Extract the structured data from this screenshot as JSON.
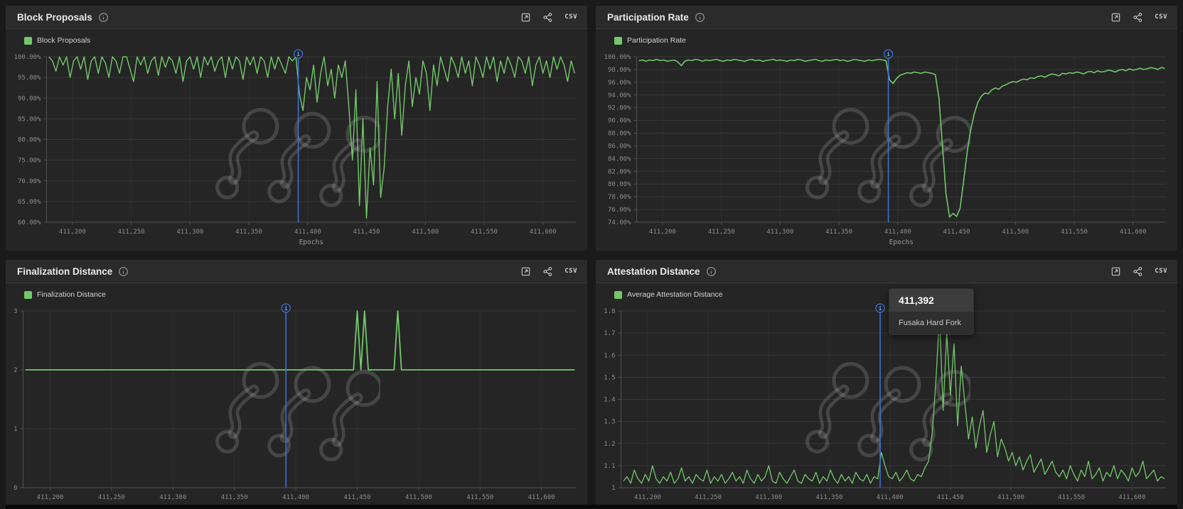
{
  "colors": {
    "series": "#73c96a",
    "annotation": "#3e6fd0",
    "grid_h": "rgba(255,255,255,0.08)",
    "grid_v": "rgba(255,255,255,0.045)",
    "axis": "#515151",
    "tick_text": "#8d8d8d",
    "panel_bg": "#252525",
    "header_bg": "#2b2b2b",
    "page_bg": "#1a1a1a"
  },
  "panels": [
    {
      "title": "Block Proposals",
      "legend": "Block Proposals",
      "csv_label": "CSV"
    },
    {
      "title": "Participation Rate",
      "legend": "Participation Rate",
      "csv_label": "CSV"
    },
    {
      "title": "Finalization Distance",
      "legend": "Finalization Distance",
      "csv_label": "CSV"
    },
    {
      "title": "Attestation Distance",
      "legend": "Average Attestation Distance",
      "csv_label": "CSV"
    }
  ],
  "chart_data": [
    {
      "type": "line",
      "name": "Block Proposals",
      "xlabel": "Epochs",
      "ylim": [
        60,
        100
      ],
      "xlim": [
        411178,
        411628
      ],
      "yticks": [
        100,
        95,
        90,
        85,
        80,
        75,
        70,
        65,
        60
      ],
      "ytick_labels": [
        "100.00%",
        "95.00%",
        "90.00%",
        "85.00%",
        "80.00%",
        "75.00%",
        "70.00%",
        "65.00%",
        "60.00%"
      ],
      "xticks": [
        411200,
        411250,
        411300,
        411350,
        411400,
        411450,
        411500,
        411550,
        411600
      ],
      "xtick_labels": [
        "411,200",
        "411,250",
        "411,300",
        "411,350",
        "411,400",
        "411,450",
        "411,500",
        "411,550",
        "411,600"
      ],
      "x_start": 411180,
      "x_step": 3,
      "stroke_width": 1.4,
      "annotation": {
        "x": 411392
      },
      "values": [
        100,
        99,
        96.5,
        100,
        98,
        100,
        95,
        99,
        100,
        97,
        100,
        94.5,
        99,
        100,
        96,
        100,
        98.5,
        95,
        100,
        99,
        96,
        100,
        100,
        97,
        94,
        100,
        98,
        100,
        96,
        99,
        100,
        95.5,
        100,
        97.5,
        100,
        99,
        96,
        100,
        94,
        99,
        100,
        97,
        100,
        95,
        100,
        98,
        100,
        96.5,
        99,
        100,
        95,
        100,
        97,
        100,
        99,
        94.5,
        100,
        98,
        100,
        96,
        100,
        99,
        95,
        100,
        97,
        100,
        98,
        96,
        100,
        99,
        100,
        91,
        87,
        95,
        92,
        98,
        89,
        96,
        100,
        93,
        97,
        90,
        98,
        95,
        99,
        88,
        75,
        92,
        64,
        85,
        61,
        78,
        69,
        94,
        66,
        73,
        88,
        97,
        85,
        96,
        81,
        93,
        99,
        88,
        95,
        91,
        99,
        96,
        87,
        98,
        93,
        100,
        97,
        94,
        100,
        98,
        95,
        100,
        96,
        99,
        93,
        100,
        98,
        95,
        100,
        97,
        100,
        94,
        99,
        96,
        100,
        98,
        95,
        100,
        99,
        96,
        100,
        93,
        98,
        100,
        96,
        99,
        95,
        100,
        97,
        100,
        98,
        94,
        99,
        96
      ]
    },
    {
      "type": "line",
      "name": "Participation Rate",
      "xlabel": "Epochs",
      "ylim": [
        74,
        100
      ],
      "xlim": [
        411178,
        411628
      ],
      "yticks": [
        100,
        98,
        96,
        94,
        92,
        90,
        88,
        86,
        84,
        82,
        80,
        78,
        76,
        74
      ],
      "ytick_labels": [
        "100.00%",
        "98.00%",
        "96.00%",
        "94.00%",
        "92.00%",
        "90.00%",
        "88.00%",
        "86.00%",
        "84.00%",
        "82.00%",
        "80.00%",
        "78.00%",
        "76.00%",
        "74.00%"
      ],
      "xticks": [
        411200,
        411250,
        411300,
        411350,
        411400,
        411450,
        411500,
        411550,
        411600
      ],
      "xtick_labels": [
        "411,200",
        "411,250",
        "411,300",
        "411,350",
        "411,400",
        "411,450",
        "411,500",
        "411,550",
        "411,600"
      ],
      "x_start": 411180,
      "x_step": 3,
      "stroke_width": 1.6,
      "annotation": {
        "x": 411392
      },
      "values": [
        99.4,
        99.5,
        99.3,
        99.5,
        99.4,
        99.6,
        99.4,
        99.5,
        99.3,
        99.4,
        99.5,
        99.2,
        98.6,
        99.3,
        99.5,
        99.4,
        99.6,
        99.5,
        99.3,
        99.5,
        99.4,
        99.5,
        99.6,
        99.4,
        99.3,
        99.5,
        99.4,
        99.6,
        99.5,
        99.4,
        99.3,
        99.5,
        99.6,
        99.4,
        99.5,
        99.3,
        99.4,
        99.5,
        99.6,
        99.4,
        99.5,
        99.4,
        99.3,
        99.5,
        99.4,
        99.6,
        99.5,
        99.3,
        99.4,
        99.5,
        99.6,
        99.4,
        99.3,
        99.5,
        99.4,
        99.5,
        99.6,
        99.4,
        99.5,
        99.3,
        99.4,
        99.6,
        99.5,
        99.4,
        99.3,
        99.5,
        99.4,
        99.5,
        99.6,
        99.5,
        99.4,
        96.4,
        95.8,
        96.6,
        97.1,
        97.3,
        97.5,
        97.4,
        97.6,
        97.5,
        97.4,
        97.6,
        97.5,
        97.4,
        97.2,
        93.5,
        86.0,
        78.5,
        74.8,
        75.4,
        74.9,
        76.2,
        80.5,
        85.0,
        88.5,
        91.0,
        92.8,
        93.8,
        94.3,
        94.2,
        94.8,
        95.1,
        94.9,
        95.4,
        95.6,
        95.9,
        96.1,
        96.0,
        96.3,
        96.5,
        96.4,
        96.7,
        96.6,
        96.9,
        97.0,
        96.8,
        97.1,
        97.3,
        97.2,
        97.0,
        97.4,
        97.3,
        97.5,
        97.4,
        97.6,
        97.5,
        97.3,
        97.6,
        97.7,
        97.5,
        97.8,
        97.6,
        97.7,
        97.9,
        97.8,
        97.6,
        97.9,
        98.0,
        97.8,
        98.1,
        97.9,
        98.0,
        98.2,
        98.0,
        98.1,
        98.3,
        98.2,
        98.0,
        98.3,
        98.2
      ]
    },
    {
      "type": "line",
      "name": "Finalization Distance",
      "xlabel": "",
      "ylim": [
        0,
        3
      ],
      "xlim": [
        411178,
        411628
      ],
      "yticks": [
        3,
        2,
        1,
        0
      ],
      "ytick_labels": [
        "3",
        "2",
        "1",
        "0"
      ],
      "xticks": [
        411200,
        411250,
        411300,
        411350,
        411400,
        411450,
        411500,
        411550,
        411600
      ],
      "xtick_labels": [
        "411,200",
        "411,250",
        "411,300",
        "411,350",
        "411,400",
        "411,450",
        "411,500",
        "411,550",
        "411,600"
      ],
      "x_start": 411180,
      "x_step": 3,
      "stroke_width": 1.8,
      "annotation": {
        "x": 411392
      },
      "values": [
        2,
        2,
        2,
        2,
        2,
        2,
        2,
        2,
        2,
        2,
        2,
        2,
        2,
        2,
        2,
        2,
        2,
        2,
        2,
        2,
        2,
        2,
        2,
        2,
        2,
        2,
        2,
        2,
        2,
        2,
        2,
        2,
        2,
        2,
        2,
        2,
        2,
        2,
        2,
        2,
        2,
        2,
        2,
        2,
        2,
        2,
        2,
        2,
        2,
        2,
        2,
        2,
        2,
        2,
        2,
        2,
        2,
        2,
        2,
        2,
        2,
        2,
        2,
        2,
        2,
        2,
        2,
        2,
        2,
        2,
        2,
        2,
        2,
        2,
        2,
        2,
        2,
        2,
        2,
        2,
        2,
        2,
        2,
        2,
        2,
        2,
        2,
        2,
        2,
        2,
        3,
        2,
        3,
        2,
        2,
        2,
        2,
        2,
        2,
        2,
        2,
        3,
        2,
        2,
        2,
        2,
        2,
        2,
        2,
        2,
        2,
        2,
        2,
        2,
        2,
        2,
        2,
        2,
        2,
        2,
        2,
        2,
        2,
        2,
        2,
        2,
        2,
        2,
        2,
        2,
        2,
        2,
        2,
        2,
        2,
        2,
        2,
        2,
        2,
        2,
        2,
        2,
        2,
        2,
        2,
        2,
        2,
        2,
        2,
        2
      ]
    },
    {
      "type": "line",
      "name": "Average Attestation Distance",
      "xlabel": "",
      "ylim": [
        1,
        1.8
      ],
      "xlim": [
        411178,
        411628
      ],
      "yticks": [
        1.8,
        1.7,
        1.6,
        1.5,
        1.4,
        1.3,
        1.2,
        1.1,
        1
      ],
      "ytick_labels": [
        "1.8",
        "1.7",
        "1.6",
        "1.5",
        "1.4",
        "1.3",
        "1.2",
        "1.1",
        "1"
      ],
      "xticks": [
        411200,
        411250,
        411300,
        411350,
        411400,
        411450,
        411500,
        411550,
        411600
      ],
      "xtick_labels": [
        "411,200",
        "411,250",
        "411,300",
        "411,350",
        "411,400",
        "411,450",
        "411,500",
        "411,550",
        "411,600"
      ],
      "x_start": 411180,
      "x_step": 3,
      "stroke_width": 1.3,
      "annotation": {
        "x": 411392,
        "label": "411,392",
        "sublabel": "Fusaka Hard Fork"
      },
      "values": [
        1.03,
        1.05,
        1.02,
        1.08,
        1.04,
        1.02,
        1.06,
        1.03,
        1.1,
        1.04,
        1.02,
        1.05,
        1.03,
        1.07,
        1.02,
        1.04,
        1.09,
        1.03,
        1.05,
        1.02,
        1.06,
        1.04,
        1.03,
        1.08,
        1.02,
        1.05,
        1.03,
        1.06,
        1.02,
        1.04,
        1.07,
        1.03,
        1.05,
        1.02,
        1.08,
        1.04,
        1.02,
        1.06,
        1.03,
        1.05,
        1.1,
        1.03,
        1.02,
        1.07,
        1.04,
        1.02,
        1.05,
        1.08,
        1.03,
        1.02,
        1.06,
        1.04,
        1.03,
        1.07,
        1.02,
        1.05,
        1.03,
        1.08,
        1.04,
        1.02,
        1.06,
        1.03,
        1.05,
        1.02,
        1.07,
        1.04,
        1.03,
        1.06,
        1.02,
        1.05,
        1.04,
        1.16,
        1.1,
        1.05,
        1.04,
        1.07,
        1.03,
        1.05,
        1.08,
        1.04,
        1.03,
        1.06,
        1.05,
        1.09,
        1.12,
        1.25,
        1.48,
        1.78,
        1.35,
        1.7,
        1.42,
        1.65,
        1.28,
        1.55,
        1.38,
        1.22,
        1.32,
        1.18,
        1.28,
        1.35,
        1.16,
        1.24,
        1.3,
        1.14,
        1.22,
        1.18,
        1.12,
        1.16,
        1.1,
        1.14,
        1.08,
        1.12,
        1.15,
        1.07,
        1.1,
        1.13,
        1.06,
        1.09,
        1.12,
        1.07,
        1.05,
        1.08,
        1.04,
        1.1,
        1.06,
        1.03,
        1.08,
        1.05,
        1.12,
        1.04,
        1.06,
        1.09,
        1.03,
        1.07,
        1.05,
        1.1,
        1.04,
        1.08,
        1.06,
        1.03,
        1.09,
        1.05,
        1.07,
        1.12,
        1.04,
        1.06,
        1.08,
        1.03,
        1.05,
        1.04
      ]
    }
  ]
}
